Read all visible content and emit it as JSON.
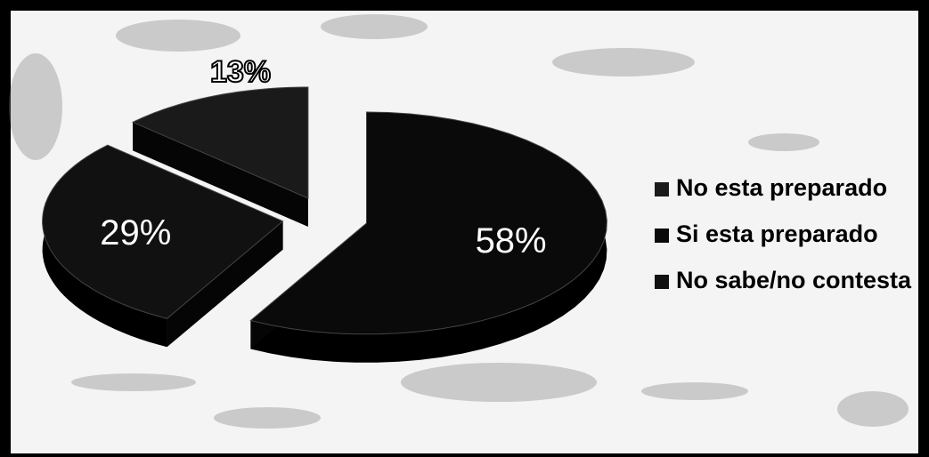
{
  "chart_data": {
    "type": "pie",
    "title": "",
    "slices": [
      {
        "label": "No esta preparado",
        "value": 13,
        "display": "13%",
        "color": "#1a1a1a"
      },
      {
        "label": "Si esta preparado",
        "value": 58,
        "display": "58%",
        "color": "#0a0a0a"
      },
      {
        "label": "No sabe/no contesta",
        "value": 29,
        "display": "29%",
        "color": "#111111"
      }
    ],
    "legend_position": "right",
    "exploded": true,
    "three_d": true
  }
}
